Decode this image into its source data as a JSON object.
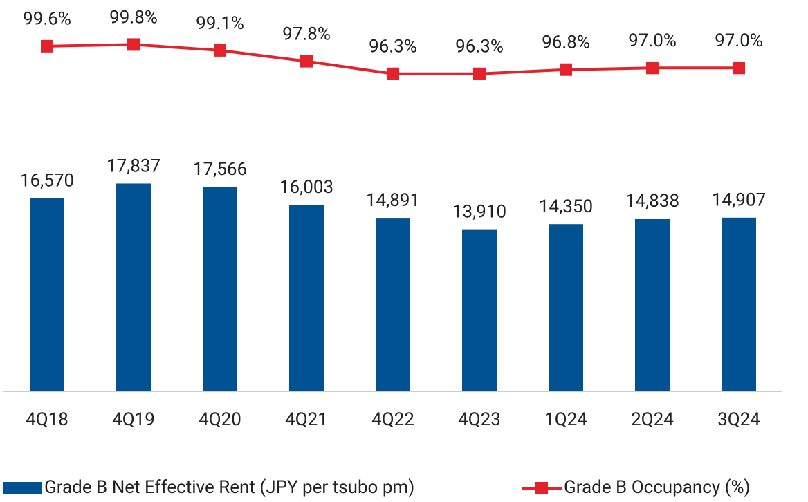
{
  "chart_data": {
    "type": "bar-line",
    "categories": [
      "4Q18",
      "4Q19",
      "4Q20",
      "4Q21",
      "4Q22",
      "4Q23",
      "1Q24",
      "2Q24",
      "3Q24"
    ],
    "series": [
      {
        "name": "Grade B Net Effective Rent (JPY per tsubo pm)",
        "type": "bar",
        "color": "#005293",
        "values": [
          16570,
          17837,
          17566,
          16003,
          14891,
          13910,
          14350,
          14838,
          14907
        ],
        "value_labels": [
          "16,570",
          "17,837",
          "17,566",
          "16,003",
          "14,891",
          "13,910",
          "14,350",
          "14,838",
          "14,907"
        ]
      },
      {
        "name": "Grade B Occupancy (%)",
        "type": "line",
        "axis": "y2",
        "color": "#e3232c",
        "values": [
          99.6,
          99.8,
          99.1,
          97.8,
          96.3,
          96.3,
          96.8,
          97.0,
          97.0
        ],
        "value_labels": [
          "99.6%",
          "99.8%",
          "99.1%",
          "97.8%",
          "96.3%",
          "96.3%",
          "96.8%",
          "97.0%",
          "97.0%"
        ]
      }
    ],
    "ylim": [
      0,
      20000
    ],
    "y2lim": [
      90,
      100
    ],
    "grid": false,
    "legend": "bottom"
  }
}
